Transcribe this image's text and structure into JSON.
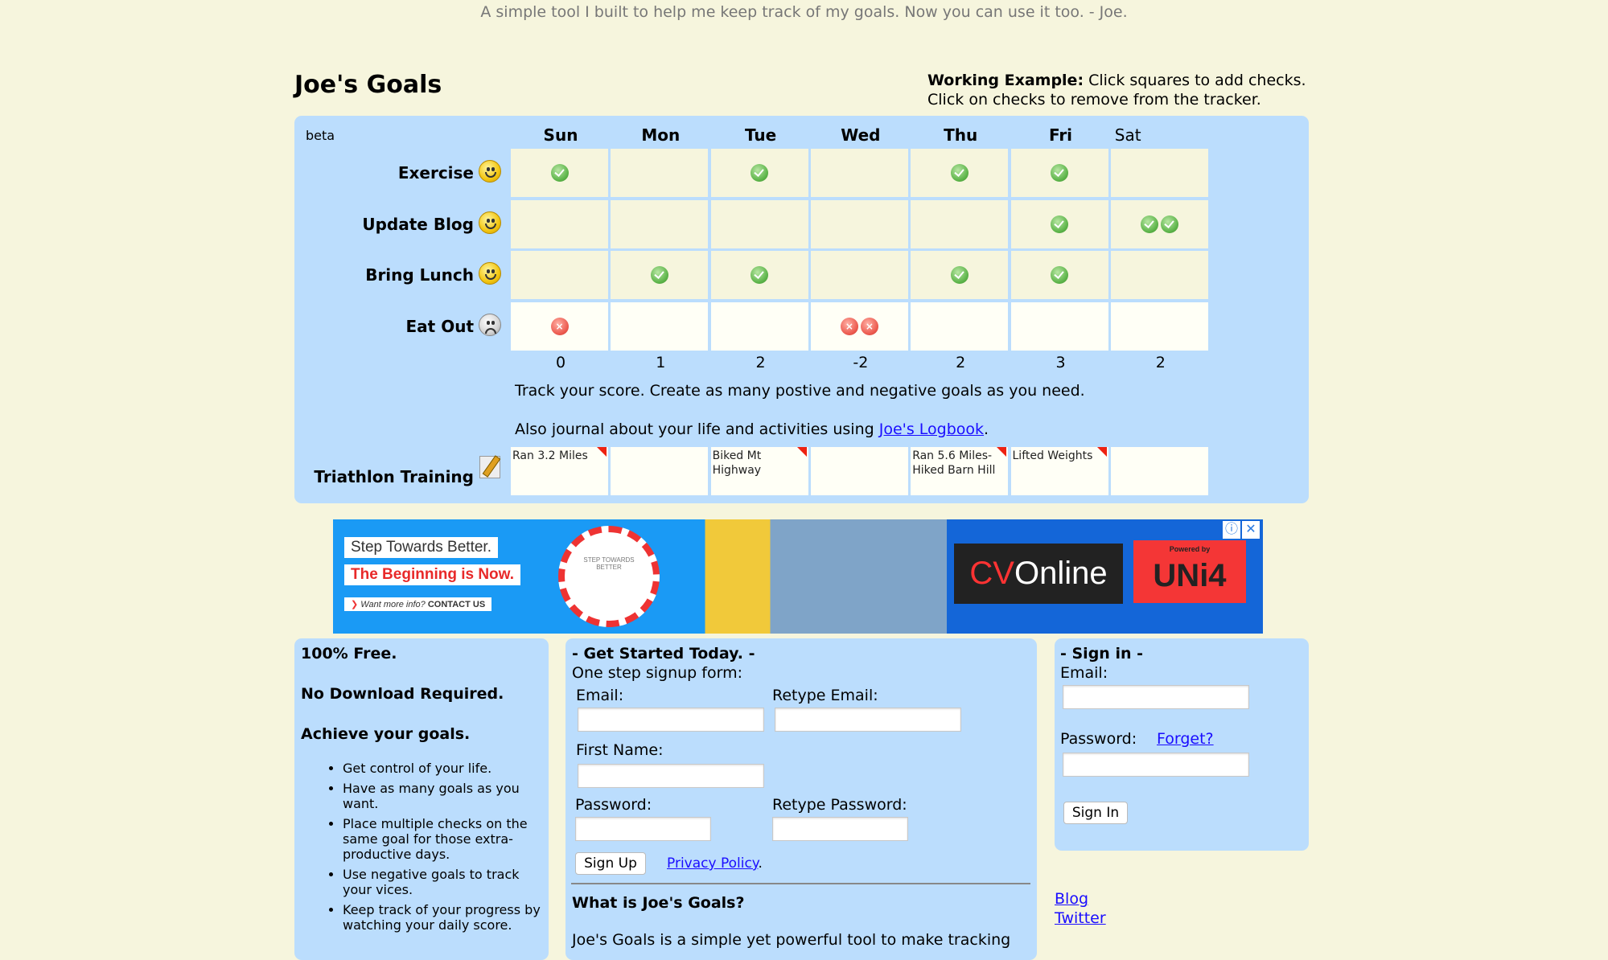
{
  "tagline": "A simple tool I built to help me keep track of my goals. Now you can use it too. - Joe.",
  "title": "Joe's Goals",
  "example": {
    "bold": "Working Example:",
    "line1": " Click squares to add checks.",
    "line2": "Click on checks to remove from the tracker."
  },
  "tracker": {
    "beta": "beta",
    "days": [
      "Sun",
      "Mon",
      "Tue",
      "Wed",
      "Thu",
      "Fri",
      "Sat"
    ],
    "goals": [
      {
        "label": "Exercise",
        "type": "positive",
        "face": "happy",
        "checks": [
          1,
          0,
          1,
          0,
          1,
          1,
          0
        ]
      },
      {
        "label": "Update Blog",
        "type": "positive",
        "face": "happy",
        "checks": [
          0,
          0,
          0,
          0,
          0,
          1,
          2
        ]
      },
      {
        "label": "Bring Lunch",
        "type": "positive",
        "face": "happy",
        "checks": [
          0,
          1,
          1,
          0,
          1,
          1,
          0
        ]
      },
      {
        "label": "Eat Out",
        "type": "negative",
        "face": "sad",
        "checks": [
          1,
          0,
          0,
          2,
          0,
          0,
          0
        ]
      }
    ],
    "scores": [
      "0",
      "1",
      "2",
      "-2",
      "2",
      "3",
      "2"
    ],
    "track_text": "Track your score. Create as many postive and negative goals as you need.",
    "journal_prefix": "Also journal about your life and activities using ",
    "journal_link": "Joe's Logbook",
    "journal_suffix": ".",
    "journal_goal": {
      "label": "Triathlon Training",
      "notes": [
        "Ran 3.2 Miles",
        "",
        "Biked Mt Highway",
        "",
        "Ran 5.6 Miles- Hiked Barn Hill",
        "Lifted Weights",
        ""
      ]
    }
  },
  "ad": {
    "line1": "Step Towards Better.",
    "line2": "The Beginning is Now.",
    "line3_a": "Want more info?",
    "line3_b": "CONTACT US",
    "badge": "STEP TOWARDS BETTER",
    "logo_a": "CV",
    "logo_b": "Online",
    "powered": "Powered by",
    "uni": "UNi4"
  },
  "left": {
    "h1": "100% Free.",
    "h2": "No Download Required.",
    "h3": "Achieve your goals.",
    "items": [
      "Get control of your life.",
      "Have as many goals as you want.",
      "Place multiple checks on the same goal for those extra-productive days.",
      "Use negative goals to track your vices.",
      "Keep track of your progress by watching your daily score."
    ]
  },
  "signup": {
    "heading": "- Get Started Today. -",
    "sub": "One step signup form:",
    "email": "Email:",
    "retype_email": "Retype Email:",
    "first_name": "First Name:",
    "password": "Password:",
    "retype_password": "Retype Password:",
    "button": "Sign Up",
    "privacy": "Privacy Policy",
    "what_heading": "What is Joe's Goals?",
    "what_text": "Joe's Goals is a simple yet powerful tool to make tracking"
  },
  "signin": {
    "heading": "- Sign in -",
    "email": "Email:",
    "password": "Password:",
    "forget": "Forget?",
    "button": "Sign In"
  },
  "links": {
    "blog": "Blog",
    "twitter": "Twitter"
  }
}
